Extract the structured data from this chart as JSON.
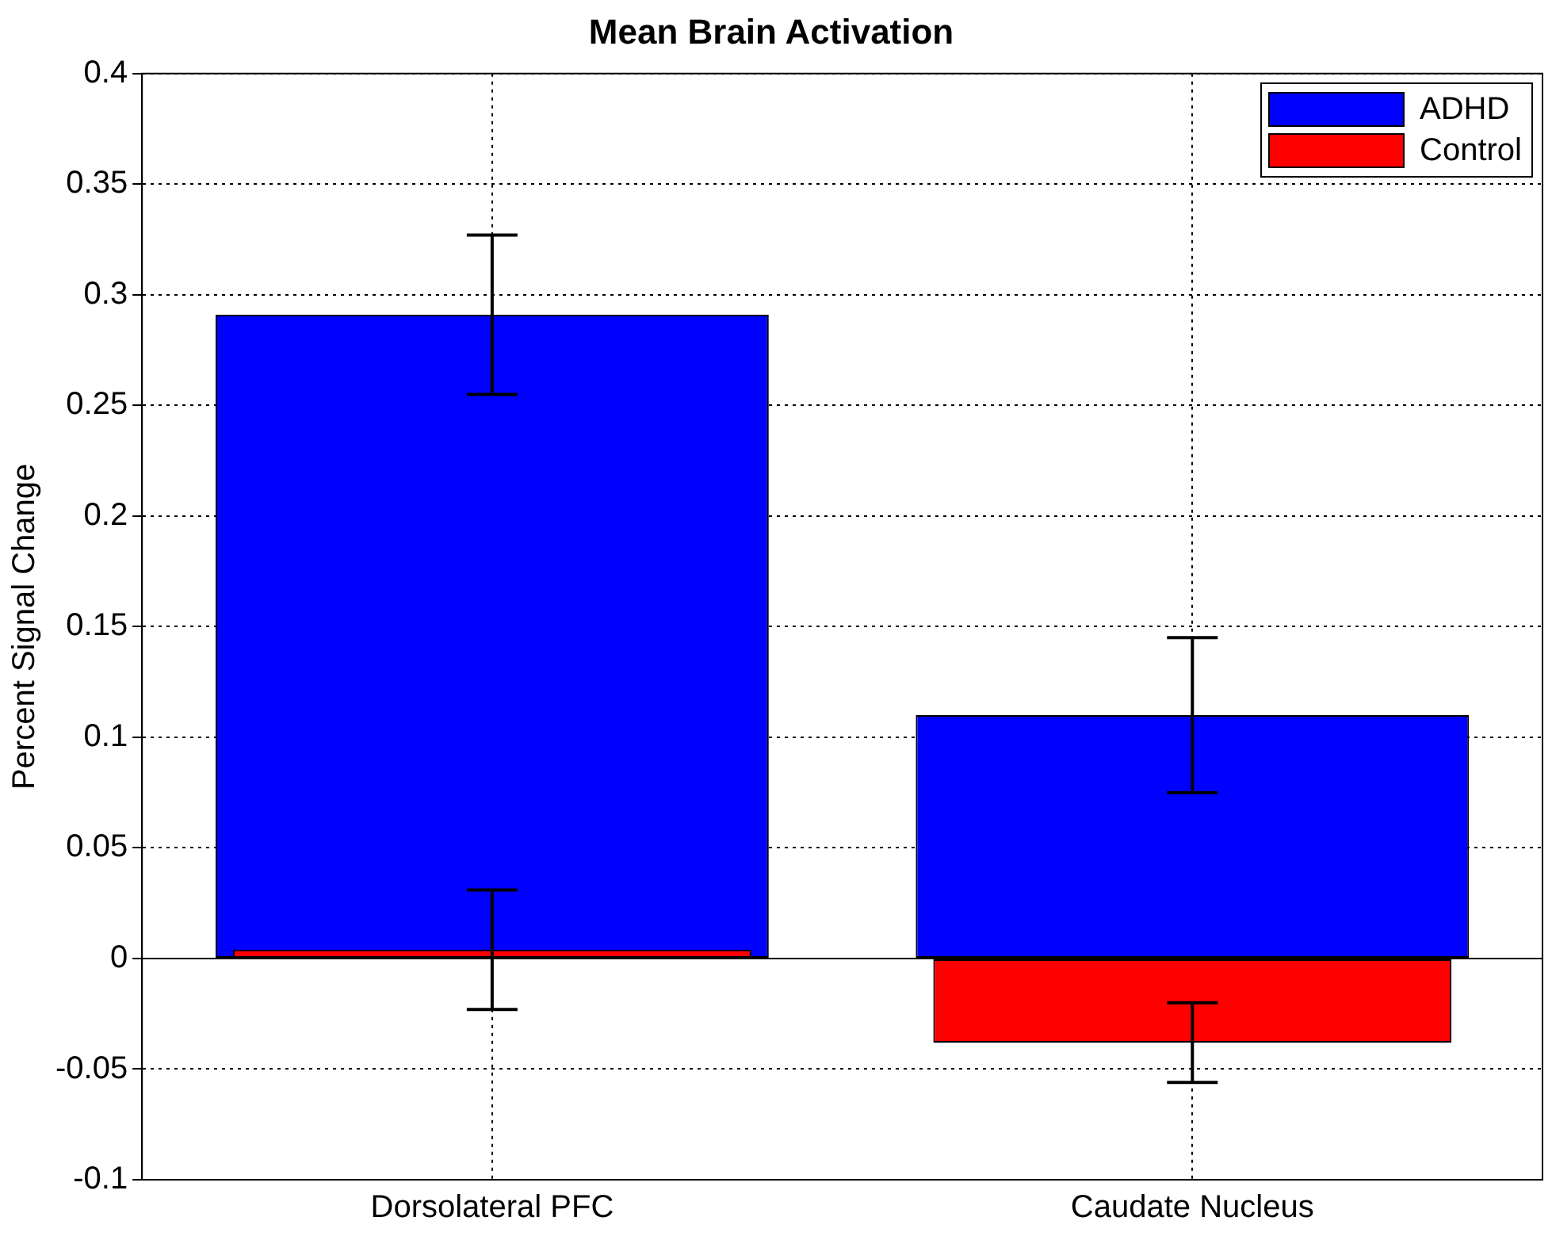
{
  "chart_data": {
    "type": "bar",
    "title": "Mean Brain Activation",
    "ylabel": "Percent Signal Change",
    "categories": [
      "Dorsolateral PFC",
      "Caudate Nucleus"
    ],
    "series": [
      {
        "name": "ADHD",
        "color": "#0000ff",
        "values": [
          0.291,
          0.11
        ],
        "errors": [
          0.036,
          0.035
        ]
      },
      {
        "name": "Control",
        "color": "#ff0000",
        "values": [
          0.004,
          -0.038
        ],
        "errors": [
          0.027,
          0.018
        ]
      }
    ],
    "ylim": [
      -0.1,
      0.4
    ],
    "yticks": [
      -0.1,
      -0.05,
      0,
      0.05,
      0.1,
      0.15,
      0.2,
      0.25,
      0.3,
      0.35,
      0.4
    ],
    "grid": true,
    "legend": "top right"
  }
}
